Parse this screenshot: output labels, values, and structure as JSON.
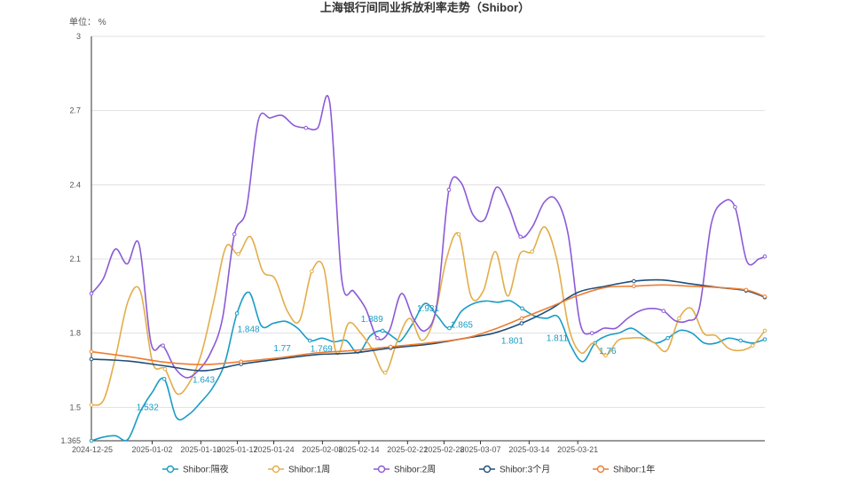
{
  "chart_data": {
    "type": "line",
    "title": "上海银行间同业拆放利率走势（Shibor）",
    "unit_label": "单位： %",
    "ylim": [
      1.365,
      3
    ],
    "y_ticks": [
      "1.365",
      "1.5",
      "1.8",
      "2.1",
      "2.4",
      "2.7",
      "3"
    ],
    "y_tick_values": [
      1.365,
      1.5,
      1.8,
      2.1,
      2.4,
      2.7,
      3.0
    ],
    "x_first_label": "2024-12-25",
    "x_ticks": [
      "2025-01-02",
      "2025-01-10",
      "2025-01-17",
      "2025-01-24",
      "2025-02-08",
      "2025-02-14",
      "2025-02-21",
      "2025-02-28",
      "2025-03-07",
      "2025-03-14",
      "2025-03-21"
    ],
    "x_tick_index": [
      8,
      16,
      23,
      30,
      38,
      44,
      51,
      58,
      65,
      72,
      79
    ],
    "x_count": 84,
    "grid": true,
    "legend_position": "bottom",
    "series": [
      {
        "name": "Shibor:隔夜",
        "color": "#1a9cc6",
        "labels": [
          {
            "i": 10,
            "text": "1.532"
          },
          {
            "i": 20,
            "text": "1.643"
          },
          {
            "i": 28,
            "text": "1.848"
          },
          {
            "i": 34,
            "text": "1.77"
          },
          {
            "i": 41,
            "text": "1.769"
          },
          {
            "i": 50,
            "text": "1.889"
          },
          {
            "i": 60,
            "text": "1.931"
          },
          {
            "i": 66,
            "text": "1.865"
          },
          {
            "i": 75,
            "text": "1.801"
          },
          {
            "i": 83,
            "text": "1.811"
          },
          {
            "i": 92,
            "text": "1.76"
          }
        ],
        "points": [
          [
            0,
            1.365
          ],
          [
            2,
            1.38
          ],
          [
            4,
            1.385
          ],
          [
            6,
            1.37
          ],
          [
            8,
            1.48
          ],
          [
            10,
            1.56
          ],
          [
            12,
            1.615
          ],
          [
            14,
            1.46
          ],
          [
            16,
            1.47
          ],
          [
            18,
            1.52
          ],
          [
            20,
            1.58
          ],
          [
            22,
            1.68
          ],
          [
            24,
            1.88
          ],
          [
            26,
            1.965
          ],
          [
            28,
            1.83
          ],
          [
            30,
            1.84
          ],
          [
            32,
            1.848
          ],
          [
            34,
            1.82
          ],
          [
            36,
            1.77
          ],
          [
            38,
            1.78
          ],
          [
            40,
            1.765
          ],
          [
            42,
            1.77
          ],
          [
            44,
            1.72
          ],
          [
            46,
            1.79
          ],
          [
            48,
            1.81
          ],
          [
            50,
            1.78
          ],
          [
            51,
            1.769
          ],
          [
            53,
            1.84
          ],
          [
            55,
            1.92
          ],
          [
            57,
            1.87
          ],
          [
            59,
            1.82
          ],
          [
            61,
            1.889
          ],
          [
            63,
            1.92
          ],
          [
            65,
            1.93
          ],
          [
            67,
            1.925
          ],
          [
            69,
            1.931
          ],
          [
            71,
            1.9
          ],
          [
            73,
            1.87
          ],
          [
            75,
            1.86
          ],
          [
            77,
            1.865
          ],
          [
            79,
            1.75
          ],
          [
            81,
            1.685
          ],
          [
            83,
            1.76
          ],
          [
            85,
            1.79
          ],
          [
            87,
            1.801
          ],
          [
            89,
            1.82
          ],
          [
            91,
            1.79
          ],
          [
            93,
            1.76
          ],
          [
            95,
            1.78
          ],
          [
            97,
            1.811
          ],
          [
            99,
            1.8
          ],
          [
            101,
            1.76
          ],
          [
            103,
            1.76
          ],
          [
            105,
            1.78
          ],
          [
            107,
            1.77
          ],
          [
            109,
            1.76
          ],
          [
            111,
            1.775
          ]
        ]
      },
      {
        "name": "Shibor:1周",
        "color": "#e3ad4b",
        "labels": [],
        "points": [
          [
            0,
            1.51
          ],
          [
            2,
            1.53
          ],
          [
            4,
            1.71
          ],
          [
            6,
            1.93
          ],
          [
            8,
            1.97
          ],
          [
            10,
            1.68
          ],
          [
            12,
            1.655
          ],
          [
            14,
            1.555
          ],
          [
            16,
            1.6
          ],
          [
            18,
            1.72
          ],
          [
            20,
            1.93
          ],
          [
            22,
            2.15
          ],
          [
            24,
            2.12
          ],
          [
            26,
            2.19
          ],
          [
            28,
            2.05
          ],
          [
            30,
            2.02
          ],
          [
            32,
            1.89
          ],
          [
            34,
            1.85
          ],
          [
            36,
            2.05
          ],
          [
            38,
            2.06
          ],
          [
            40,
            1.72
          ],
          [
            42,
            1.84
          ],
          [
            44,
            1.8
          ],
          [
            46,
            1.73
          ],
          [
            48,
            1.64
          ],
          [
            50,
            1.77
          ],
          [
            52,
            1.86
          ],
          [
            54,
            1.77
          ],
          [
            56,
            1.86
          ],
          [
            58,
            2.1
          ],
          [
            60,
            2.2
          ],
          [
            62,
            1.95
          ],
          [
            64,
            1.97
          ],
          [
            66,
            2.13
          ],
          [
            68,
            1.95
          ],
          [
            70,
            2.12
          ],
          [
            72,
            2.13
          ],
          [
            74,
            2.23
          ],
          [
            76,
            2.1
          ],
          [
            78,
            1.82
          ],
          [
            80,
            1.72
          ],
          [
            82,
            1.76
          ],
          [
            84,
            1.71
          ],
          [
            86,
            1.77
          ],
          [
            88,
            1.78
          ],
          [
            90,
            1.78
          ],
          [
            92,
            1.76
          ],
          [
            94,
            1.73
          ],
          [
            96,
            1.86
          ],
          [
            98,
            1.9
          ],
          [
            100,
            1.8
          ],
          [
            102,
            1.79
          ],
          [
            104,
            1.74
          ],
          [
            106,
            1.73
          ],
          [
            108,
            1.75
          ],
          [
            110,
            1.81
          ]
        ]
      },
      {
        "name": "Shibor:2周",
        "color": "#8c5ad6",
        "labels": [],
        "points": [
          [
            0,
            1.96
          ],
          [
            2,
            2.02
          ],
          [
            4,
            2.14
          ],
          [
            6,
            2.08
          ],
          [
            8,
            2.16
          ],
          [
            10,
            1.76
          ],
          [
            12,
            1.75
          ],
          [
            14,
            1.66
          ],
          [
            16,
            1.62
          ],
          [
            18,
            1.65
          ],
          [
            20,
            1.72
          ],
          [
            22,
            1.86
          ],
          [
            24,
            2.2
          ],
          [
            26,
            2.3
          ],
          [
            28,
            2.66
          ],
          [
            30,
            2.67
          ],
          [
            32,
            2.68
          ],
          [
            34,
            2.64
          ],
          [
            36,
            2.63
          ],
          [
            38,
            2.63
          ],
          [
            40,
            2.73
          ],
          [
            42,
            2.02
          ],
          [
            44,
            1.97
          ],
          [
            46,
            1.9
          ],
          [
            48,
            1.78
          ],
          [
            50,
            1.81
          ],
          [
            52,
            1.96
          ],
          [
            54,
            1.86
          ],
          [
            56,
            1.81
          ],
          [
            58,
            1.92
          ],
          [
            60,
            2.38
          ],
          [
            62,
            2.41
          ],
          [
            64,
            2.28
          ],
          [
            66,
            2.26
          ],
          [
            68,
            2.39
          ],
          [
            70,
            2.31
          ],
          [
            72,
            2.19
          ],
          [
            74,
            2.23
          ],
          [
            76,
            2.33
          ],
          [
            78,
            2.34
          ],
          [
            80,
            2.2
          ],
          [
            82,
            1.84
          ],
          [
            84,
            1.8
          ],
          [
            86,
            1.82
          ],
          [
            88,
            1.82
          ],
          [
            90,
            1.86
          ],
          [
            92,
            1.89
          ],
          [
            94,
            1.9
          ],
          [
            96,
            1.89
          ],
          [
            98,
            1.85
          ],
          [
            100,
            1.85
          ],
          [
            102,
            1.9
          ],
          [
            104,
            2.24
          ],
          [
            106,
            2.33
          ],
          [
            108,
            2.31
          ],
          [
            110,
            2.09
          ],
          [
            112,
            2.1
          ],
          [
            113,
            2.11
          ]
        ]
      },
      {
        "name": "Shibor:3个月",
        "color": "#1f4e79",
        "labels": [],
        "points": [
          [
            0,
            1.695
          ],
          [
            8,
            1.687
          ],
          [
            16,
            1.667
          ],
          [
            24,
            1.648
          ],
          [
            32,
            1.675
          ],
          [
            40,
            1.695
          ],
          [
            48,
            1.713
          ],
          [
            56,
            1.72
          ],
          [
            64,
            1.74
          ],
          [
            72,
            1.755
          ],
          [
            80,
            1.78
          ],
          [
            86,
            1.8
          ],
          [
            92,
            1.84
          ],
          [
            98,
            1.895
          ],
          [
            104,
            1.965
          ],
          [
            110,
            1.99
          ],
          [
            116,
            2.01
          ],
          [
            122,
            2.015
          ],
          [
            128,
            2.0
          ],
          [
            134,
            1.985
          ],
          [
            140,
            1.972
          ],
          [
            144,
            1.945
          ]
        ]
      },
      {
        "name": "Shibor:1年",
        "color": "#ed7d31",
        "labels": [],
        "points": [
          [
            0,
            1.725
          ],
          [
            8,
            1.705
          ],
          [
            16,
            1.682
          ],
          [
            24,
            1.673
          ],
          [
            32,
            1.685
          ],
          [
            40,
            1.7
          ],
          [
            48,
            1.72
          ],
          [
            56,
            1.73
          ],
          [
            64,
            1.745
          ],
          [
            72,
            1.76
          ],
          [
            80,
            1.78
          ],
          [
            86,
            1.815
          ],
          [
            92,
            1.86
          ],
          [
            98,
            1.905
          ],
          [
            104,
            1.952
          ],
          [
            110,
            1.985
          ],
          [
            116,
            1.99
          ],
          [
            122,
            1.995
          ],
          [
            128,
            1.99
          ],
          [
            134,
            1.985
          ],
          [
            140,
            1.975
          ],
          [
            144,
            1.948
          ]
        ]
      }
    ]
  }
}
